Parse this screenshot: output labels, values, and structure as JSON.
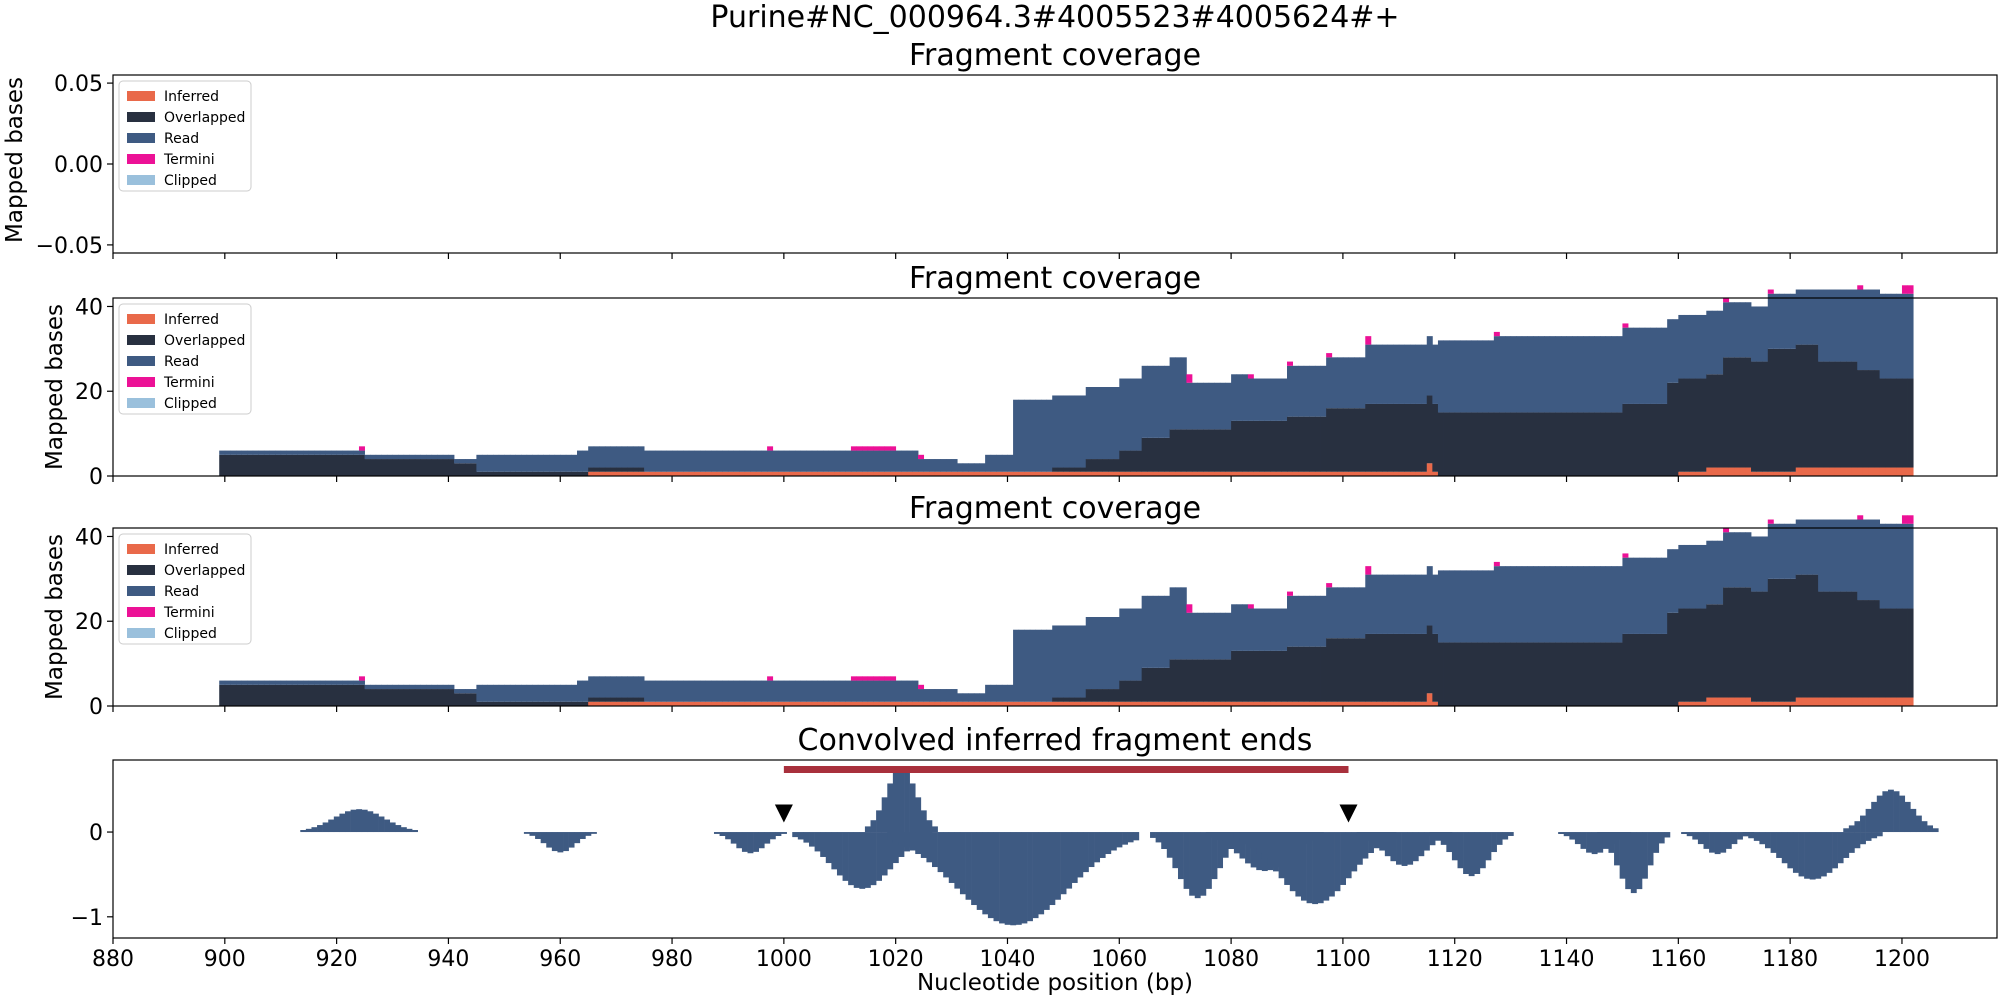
{
  "figure": {
    "title": "Purine#NC_000964.3#4005523#4005624#+"
  },
  "colors": {
    "Inferred": "#e9694a",
    "Overlapped": "#283040",
    "Read": "#3e5a82",
    "Termini": "#ec1196",
    "Clipped": "#9ac0dc",
    "bar": "#a8303c",
    "marker": "#000000",
    "ends": "#3e5a82"
  },
  "legend": {
    "entries": [
      "Inferred",
      "Overlapped",
      "Read",
      "Termini",
      "Clipped"
    ]
  },
  "chart_data": [
    {
      "type": "area",
      "title": "Fragment coverage",
      "ylabel": "Mapped bases",
      "xlim": [
        880,
        1217
      ],
      "ylim": [
        -0.055,
        0.055
      ],
      "yticks": [
        0.05,
        0.0,
        -0.05
      ],
      "ytick_labels": [
        "0.05",
        "0.00",
        "−0.05"
      ],
      "legend_position": "upper-left",
      "series": []
    },
    {
      "type": "area",
      "title": "Fragment coverage",
      "ylabel": "Mapped bases",
      "xlim": [
        880,
        1217
      ],
      "ylim": [
        0,
        42
      ],
      "yticks": [
        0,
        20,
        40
      ],
      "ytick_labels": [
        "0",
        "20",
        "40"
      ],
      "legend_position": "upper-left",
      "series": [
        {
          "name": "Inferred",
          "segments": [
            [
              965,
              1117,
              1
            ],
            [
              1115,
              1116,
              2
            ],
            [
              1160,
              1165,
              1
            ],
            [
              1165,
              1173,
              2
            ],
            [
              1173,
              1181,
              1
            ],
            [
              1181,
              1202,
              2
            ]
          ]
        },
        {
          "name": "Overlapped",
          "segments": [
            [
              899,
              925,
              5
            ],
            [
              925,
              941,
              4
            ],
            [
              941,
              945,
              3
            ],
            [
              945,
              963,
              1
            ],
            [
              963,
              969,
              1
            ],
            [
              969,
              975,
              1
            ],
            [
              1048,
              1054,
              1
            ],
            [
              1054,
              1060,
              3
            ],
            [
              1060,
              1064,
              5
            ],
            [
              1064,
              1069,
              8
            ],
            [
              1069,
              1080,
              10
            ],
            [
              1080,
              1090,
              12
            ],
            [
              1090,
              1097,
              13
            ],
            [
              1097,
              1104,
              15
            ],
            [
              1104,
              1117,
              16
            ],
            [
              1117,
              1150,
              15
            ],
            [
              1150,
              1158,
              17
            ],
            [
              1158,
              1168,
              22
            ],
            [
              1168,
              1176,
              26
            ],
            [
              1176,
              1185,
              29
            ],
            [
              1185,
              1192,
              25
            ],
            [
              1192,
              1196,
              23
            ],
            [
              1196,
              1202,
              21
            ]
          ]
        },
        {
          "name": "Read",
          "segments": [
            [
              899,
              925,
              1
            ],
            [
              925,
              945,
              1
            ],
            [
              945,
              963,
              4
            ],
            [
              963,
              997,
              5
            ],
            [
              997,
              1024,
              5
            ],
            [
              1024,
              1031,
              3
            ],
            [
              1031,
              1036,
              2
            ],
            [
              1036,
              1041,
              4
            ],
            [
              1041,
              1048,
              17
            ],
            [
              1048,
              1072,
              17
            ],
            [
              1072,
              1083,
              11
            ],
            [
              1083,
              1090,
              10
            ],
            [
              1090,
              1097,
              12
            ],
            [
              1097,
              1104,
              12
            ],
            [
              1104,
              1117,
              14
            ],
            [
              1117,
              1127,
              17
            ],
            [
              1127,
              1150,
              18
            ],
            [
              1150,
              1158,
              18
            ],
            [
              1158,
              1168,
              15
            ],
            [
              1168,
              1176,
              13
            ],
            [
              1176,
              1185,
              13
            ],
            [
              1185,
              1192,
              17
            ],
            [
              1192,
              1196,
              19
            ],
            [
              1196,
              1202,
              20
            ]
          ]
        },
        {
          "name": "Termini",
          "segments": [
            [
              924,
              925,
              1
            ],
            [
              997,
              998,
              1
            ],
            [
              1012,
              1020,
              1
            ],
            [
              1024,
              1025,
              1
            ],
            [
              1072,
              1073,
              2
            ],
            [
              1083,
              1084,
              1
            ],
            [
              1090,
              1091,
              1
            ],
            [
              1097,
              1098,
              1
            ],
            [
              1104,
              1105,
              2
            ],
            [
              1127,
              1128,
              1
            ],
            [
              1150,
              1151,
              1
            ],
            [
              1168,
              1169,
              1
            ],
            [
              1176,
              1177,
              1
            ],
            [
              1192,
              1193,
              1
            ],
            [
              1200,
              1202,
              2
            ]
          ]
        }
      ]
    },
    {
      "type": "area",
      "title": "Fragment coverage",
      "ylabel": "Mapped bases",
      "xlim": [
        880,
        1217
      ],
      "ylim": [
        0,
        42
      ],
      "yticks": [
        0,
        20,
        40
      ],
      "ytick_labels": [
        "0",
        "20",
        "40"
      ],
      "legend_position": "upper-left",
      "series": [
        {
          "name": "Inferred",
          "segments": [
            [
              965,
              1117,
              1
            ],
            [
              1115,
              1116,
              2
            ],
            [
              1160,
              1165,
              1
            ],
            [
              1165,
              1173,
              2
            ],
            [
              1173,
              1181,
              1
            ],
            [
              1181,
              1202,
              2
            ]
          ]
        },
        {
          "name": "Overlapped",
          "segments": [
            [
              899,
              925,
              5
            ],
            [
              925,
              941,
              4
            ],
            [
              941,
              945,
              3
            ],
            [
              945,
              963,
              1
            ],
            [
              963,
              969,
              1
            ],
            [
              969,
              975,
              1
            ],
            [
              1048,
              1054,
              1
            ],
            [
              1054,
              1060,
              3
            ],
            [
              1060,
              1064,
              5
            ],
            [
              1064,
              1069,
              8
            ],
            [
              1069,
              1080,
              10
            ],
            [
              1080,
              1090,
              12
            ],
            [
              1090,
              1097,
              13
            ],
            [
              1097,
              1104,
              15
            ],
            [
              1104,
              1117,
              16
            ],
            [
              1117,
              1150,
              15
            ],
            [
              1150,
              1158,
              17
            ],
            [
              1158,
              1168,
              22
            ],
            [
              1168,
              1176,
              26
            ],
            [
              1176,
              1185,
              29
            ],
            [
              1185,
              1192,
              25
            ],
            [
              1192,
              1196,
              23
            ],
            [
              1196,
              1202,
              21
            ]
          ]
        },
        {
          "name": "Read",
          "segments": [
            [
              899,
              925,
              1
            ],
            [
              925,
              945,
              1
            ],
            [
              945,
              963,
              4
            ],
            [
              963,
              997,
              5
            ],
            [
              997,
              1024,
              5
            ],
            [
              1024,
              1031,
              3
            ],
            [
              1031,
              1036,
              2
            ],
            [
              1036,
              1041,
              4
            ],
            [
              1041,
              1048,
              17
            ],
            [
              1048,
              1072,
              17
            ],
            [
              1072,
              1083,
              11
            ],
            [
              1083,
              1090,
              10
            ],
            [
              1090,
              1097,
              12
            ],
            [
              1097,
              1104,
              12
            ],
            [
              1104,
              1117,
              14
            ],
            [
              1117,
              1127,
              17
            ],
            [
              1127,
              1150,
              18
            ],
            [
              1150,
              1158,
              18
            ],
            [
              1158,
              1168,
              15
            ],
            [
              1168,
              1176,
              13
            ],
            [
              1176,
              1185,
              13
            ],
            [
              1185,
              1192,
              17
            ],
            [
              1192,
              1196,
              19
            ],
            [
              1196,
              1202,
              20
            ]
          ]
        },
        {
          "name": "Termini",
          "segments": [
            [
              924,
              925,
              1
            ],
            [
              997,
              998,
              1
            ],
            [
              1012,
              1020,
              1
            ],
            [
              1024,
              1025,
              1
            ],
            [
              1072,
              1073,
              2
            ],
            [
              1083,
              1084,
              1
            ],
            [
              1090,
              1091,
              1
            ],
            [
              1097,
              1098,
              1
            ],
            [
              1104,
              1105,
              2
            ],
            [
              1127,
              1128,
              1
            ],
            [
              1150,
              1151,
              1
            ],
            [
              1168,
              1169,
              1
            ],
            [
              1176,
              1177,
              1
            ],
            [
              1192,
              1193,
              1
            ],
            [
              1200,
              1202,
              2
            ]
          ]
        }
      ]
    },
    {
      "type": "bar",
      "title": "Convolved inferred fragment ends",
      "xlabel": "Nucleotide position (bp)",
      "xlim": [
        880,
        1217
      ],
      "ylim": [
        -1.25,
        0.85
      ],
      "yticks": [
        0,
        -1
      ],
      "ytick_labels": [
        "0",
        "−1"
      ],
      "xticks": [
        880,
        900,
        920,
        940,
        960,
        980,
        1000,
        1020,
        1040,
        1060,
        1080,
        1100,
        1120,
        1140,
        1160,
        1180,
        1200
      ],
      "xtick_labels": [
        "880",
        "900",
        "920",
        "940",
        "960",
        "980",
        "1000",
        "1020",
        "1040",
        "1060",
        "1080",
        "1100",
        "1120",
        "1140",
        "1160",
        "1180",
        "1200"
      ],
      "interval": [
        1000,
        1101
      ],
      "markers": [
        1000,
        1101
      ],
      "bumps": [
        [
          924,
          10,
          0.27
        ],
        [
          960,
          6,
          -0.24
        ],
        [
          994,
          6,
          -0.25
        ],
        [
          1021,
          6,
          0.75
        ],
        [
          1014,
          12,
          -0.67
        ],
        [
          1041,
          22,
          -1.1
        ],
        [
          1074,
          8,
          -0.78
        ],
        [
          1086,
          10,
          -0.46
        ],
        [
          1095,
          14,
          -0.85
        ],
        [
          1111,
          8,
          -0.4
        ],
        [
          1123,
          7,
          -0.52
        ],
        [
          1145,
          6,
          -0.26
        ],
        [
          1152,
          6,
          -0.72
        ],
        [
          1167,
          6,
          -0.26
        ],
        [
          1184,
          12,
          -0.56
        ],
        [
          1198,
          8,
          0.5
        ]
      ]
    }
  ]
}
